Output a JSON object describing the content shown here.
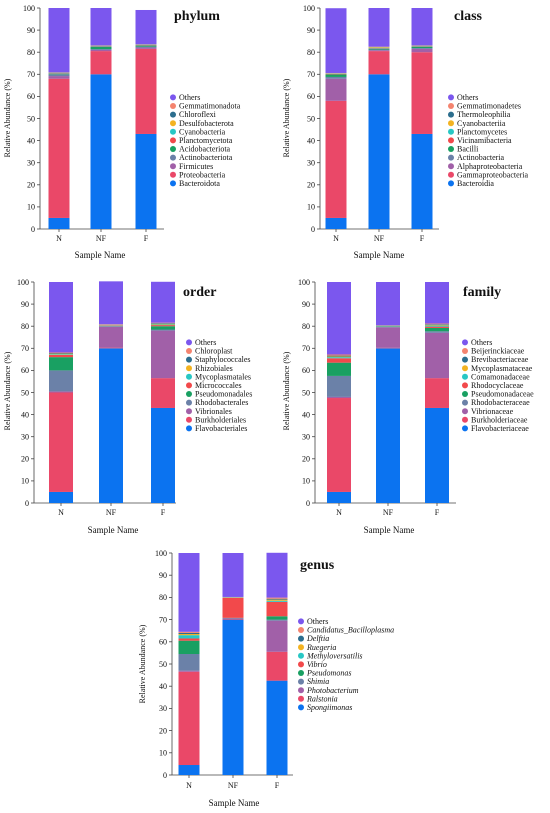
{
  "colors": {
    "Others": "#7b57ee",
    "c2": "#f4846f",
    "c3": "#2c6e8e",
    "c4": "#f3b321",
    "c5": "#28c7c4",
    "c6": "#f2494b",
    "c7": "#19a062",
    "c8": "#6b81a8",
    "c9": "#a160a8",
    "c10": "#ea4868",
    "c11": "#0b73f0"
  },
  "chart_data": [
    {
      "type": "bar",
      "title": "phylum",
      "xlabel": "Sample Name",
      "ylabel": "Relative Abundance (%)",
      "ylim": [
        0,
        100
      ],
      "yticks": [
        "0",
        "10",
        "20",
        "30",
        "40",
        "50",
        "60",
        "70",
        "80",
        "90",
        "100"
      ],
      "categories": [
        "N",
        "NF",
        "F"
      ],
      "series": [
        {
          "name": "Bacteroidota",
          "color_key": "c11",
          "values": [
            5,
            70,
            43
          ]
        },
        {
          "name": "Proteobacteria",
          "color_key": "c10",
          "values": [
            63,
            10.5,
            38.5
          ]
        },
        {
          "name": "Firmicutes",
          "color_key": "c9",
          "values": [
            1.2,
            0.5,
            0.6
          ]
        },
        {
          "name": "Actinobacteriota",
          "color_key": "c8",
          "values": [
            0.8,
            0.4,
            0.4
          ]
        },
        {
          "name": "Acidobacteriota",
          "color_key": "c7",
          "values": [
            0.3,
            1,
            0.5
          ]
        },
        {
          "name": "Planctomycetota",
          "color_key": "c6",
          "values": [
            0.2,
            0.2,
            0.2
          ]
        },
        {
          "name": "Cyanobacteria",
          "color_key": "c5",
          "values": [
            0.1,
            0.2,
            0.1
          ]
        },
        {
          "name": "Desulfobacterota",
          "color_key": "c4",
          "values": [
            0.1,
            0.1,
            0.1
          ]
        },
        {
          "name": "Chloroflexi",
          "color_key": "c3",
          "values": [
            0.1,
            0.1,
            0.1
          ]
        },
        {
          "name": "Gemmatimonadota",
          "color_key": "c2",
          "values": [
            0.1,
            0.1,
            0.1
          ]
        },
        {
          "name": "Others",
          "color_key": "Others",
          "values": [
            29.1,
            16.9,
            15.5
          ]
        }
      ],
      "legend_order": [
        "Others",
        "Gemmatimonadota",
        "Chloroflexi",
        "Desulfobacterota",
        "Cyanobacteria",
        "Planctomycetota",
        "Acidobacteriota",
        "Actinobacteriota",
        "Firmicutes",
        "Proteobacteria",
        "Bacteroidota"
      ],
      "italic_legend": false
    },
    {
      "type": "bar",
      "title": "class",
      "xlabel": "Sample Name",
      "ylabel": "Relative Abundance (%)",
      "ylim": [
        0,
        100
      ],
      "yticks": [
        "0",
        "10",
        "20",
        "30",
        "40",
        "50",
        "60",
        "70",
        "80",
        "90",
        "100"
      ],
      "categories": [
        "N",
        "NF",
        "F"
      ],
      "series": [
        {
          "name": "Bacteroidia",
          "color_key": "c11",
          "values": [
            5,
            70,
            43
          ]
        },
        {
          "name": "Gammaproteobacteria",
          "color_key": "c10",
          "values": [
            53,
            10.5,
            37
          ]
        },
        {
          "name": "Alphaproteobacteria",
          "color_key": "c9",
          "values": [
            10,
            0.4,
            1.5
          ]
        },
        {
          "name": "Actinobacteria",
          "color_key": "c8",
          "values": [
            0.8,
            0.3,
            0.4
          ]
        },
        {
          "name": "Bacilli",
          "color_key": "c7",
          "values": [
            1.2,
            0.4,
            0.6
          ]
        },
        {
          "name": "Vicinamibacteria",
          "color_key": "c6",
          "values": [
            0.2,
            0.2,
            0.2
          ]
        },
        {
          "name": "Planctomycetes",
          "color_key": "c5",
          "values": [
            0.1,
            0.2,
            0.1
          ]
        },
        {
          "name": "Cyanobacteriia",
          "color_key": "c4",
          "values": [
            0.1,
            0.3,
            0.1
          ]
        },
        {
          "name": "Thermoleophilia",
          "color_key": "c3",
          "values": [
            0.1,
            0.1,
            0.1
          ]
        },
        {
          "name": "Gemmatimonadetes",
          "color_key": "c2",
          "values": [
            0.1,
            0.1,
            0.1
          ]
        },
        {
          "name": "Others",
          "color_key": "Others",
          "values": [
            29.3,
            17.5,
            16.9
          ]
        }
      ],
      "legend_order": [
        "Others",
        "Gemmatimonadetes",
        "Thermoleophilia",
        "Cyanobacteriia",
        "Planctomycetes",
        "Vicinamibacteria",
        "Bacilli",
        "Actinobacteria",
        "Alphaproteobacteria",
        "Gammaproteobacteria",
        "Bacteroidia"
      ],
      "italic_legend": false
    },
    {
      "type": "bar",
      "title": "order",
      "xlabel": "Sample Name",
      "ylabel": "Relative Abundance (%)",
      "ylim": [
        0,
        100
      ],
      "yticks": [
        "0",
        "10",
        "20",
        "30",
        "40",
        "50",
        "60",
        "70",
        "80",
        "90",
        "100"
      ],
      "categories": [
        "N",
        "NF",
        "F"
      ],
      "series": [
        {
          "name": "Flavobacteriales",
          "color_key": "c11",
          "values": [
            5,
            70,
            43
          ]
        },
        {
          "name": "Burkholderiales",
          "color_key": "c10",
          "values": [
            45,
            0.3,
            13.5
          ]
        },
        {
          "name": "Vibrionales",
          "color_key": "c9",
          "values": [
            0.5,
            9.5,
            21.5
          ]
        },
        {
          "name": "Rhodobacterales",
          "color_key": "c8",
          "values": [
            9.5,
            0.2,
            0.5
          ]
        },
        {
          "name": "Pseudomonadales",
          "color_key": "c7",
          "values": [
            6,
            0.2,
            1.5
          ]
        },
        {
          "name": "Micrococcales",
          "color_key": "c6",
          "values": [
            1,
            0.2,
            0.5
          ]
        },
        {
          "name": "Mycoplasmatales",
          "color_key": "c5",
          "values": [
            0.3,
            0.1,
            0.3
          ]
        },
        {
          "name": "Rhizobiales",
          "color_key": "c4",
          "values": [
            0.3,
            0.1,
            0.3
          ]
        },
        {
          "name": "Staphylococcales",
          "color_key": "c3",
          "values": [
            0.3,
            0.1,
            0.3
          ]
        },
        {
          "name": "Chloroplast",
          "color_key": "c2",
          "values": [
            0.2,
            0.2,
            0.2
          ]
        },
        {
          "name": "Others",
          "color_key": "Others",
          "values": [
            31.9,
            19.4,
            18.5
          ]
        }
      ],
      "legend_order": [
        "Others",
        "Chloroplast",
        "Staphylococcales",
        "Rhizobiales",
        "Mycoplasmatales",
        "Micrococcales",
        "Pseudomonadales",
        "Rhodobacterales",
        "Vibrionales",
        "Burkholderiales",
        "Flavobacteriales"
      ],
      "italic_legend": false
    },
    {
      "type": "bar",
      "title": "family",
      "xlabel": "Sample Name",
      "ylabel": "Relative Abundance (%)",
      "ylim": [
        0,
        100
      ],
      "yticks": [
        "0",
        "10",
        "20",
        "30",
        "40",
        "50",
        "60",
        "70",
        "80",
        "90",
        "100"
      ],
      "categories": [
        "N",
        "NF",
        "F"
      ],
      "series": [
        {
          "name": "Flavobacteriaceae",
          "color_key": "c11",
          "values": [
            5,
            70,
            43
          ]
        },
        {
          "name": "Burkholderiaceae",
          "color_key": "c10",
          "values": [
            42.5,
            0.2,
            13.5
          ]
        },
        {
          "name": "Vibrionaceae",
          "color_key": "c9",
          "values": [
            0.5,
            9.3,
            20.5
          ]
        },
        {
          "name": "Rhodobacteraceae",
          "color_key": "c8",
          "values": [
            9.5,
            0.2,
            0.7
          ]
        },
        {
          "name": "Pseudomonadaceae",
          "color_key": "c7",
          "values": [
            6,
            0.2,
            1.5
          ]
        },
        {
          "name": "Rhodocyclaceae",
          "color_key": "c6",
          "values": [
            2,
            0.1,
            0.6
          ]
        },
        {
          "name": "Comamonadaceae",
          "color_key": "c5",
          "values": [
            0.5,
            0.1,
            0.5
          ]
        },
        {
          "name": "Mycoplasmataceae",
          "color_key": "c4",
          "values": [
            0.3,
            0.1,
            0.3
          ]
        },
        {
          "name": "Brevibacteriaceae",
          "color_key": "c3",
          "values": [
            0.4,
            0.1,
            0.3
          ]
        },
        {
          "name": "Beijerinckiaceae",
          "color_key": "c2",
          "values": [
            0.5,
            0.1,
            0.3
          ]
        },
        {
          "name": "Others",
          "color_key": "Others",
          "values": [
            32.8,
            19.6,
            18.8
          ]
        }
      ],
      "legend_order": [
        "Others",
        "Beijerinckiaceae",
        "Brevibacteriaceae",
        "Mycoplasmataceae",
        "Comamonadaceae",
        "Rhodocyclaceae",
        "Pseudomonadaceae",
        "Rhodobacteraceae",
        "Vibrionaceae",
        "Burkholderiaceae",
        "Flavobacteriaceae"
      ],
      "italic_legend": false
    },
    {
      "type": "bar",
      "title": "genus",
      "xlabel": "Sample Name",
      "ylabel": "Relative Abundance (%)",
      "ylim": [
        0,
        100
      ],
      "yticks": [
        "0",
        "10",
        "20",
        "30",
        "40",
        "50",
        "60",
        "70",
        "80",
        "90",
        "100"
      ],
      "categories": [
        "N",
        "NF",
        "F"
      ],
      "series": [
        {
          "name": "Spongiimonas",
          "color_key": "c11",
          "values": [
            4.5,
            70,
            42.5
          ]
        },
        {
          "name": "Ralstonia",
          "color_key": "c10",
          "values": [
            42,
            0.3,
            13
          ]
        },
        {
          "name": "Photobacterium",
          "color_key": "c9",
          "values": [
            0.5,
            0.2,
            14
          ]
        },
        {
          "name": "Shimia",
          "color_key": "c8",
          "values": [
            7.5,
            0.2,
            0.5
          ]
        },
        {
          "name": "Pseudomonas",
          "color_key": "c7",
          "values": [
            6,
            0.1,
            1.5
          ]
        },
        {
          "name": "Vibrio",
          "color_key": "c6",
          "values": [
            1,
            9,
            6.5
          ]
        },
        {
          "name": "Methyloversatilis",
          "color_key": "c5",
          "values": [
            1.5,
            0.1,
            0.5
          ]
        },
        {
          "name": "Ruegeria",
          "color_key": "c4",
          "values": [
            0.5,
            0.1,
            0.5
          ]
        },
        {
          "name": "Delftia",
          "color_key": "c3",
          "values": [
            0.5,
            0.1,
            0.4
          ]
        },
        {
          "name": "Candidatus_Bacilloplasma",
          "color_key": "c2",
          "values": [
            0.5,
            0.1,
            0.5
          ]
        },
        {
          "name": "Others",
          "color_key": "Others",
          "values": [
            35.5,
            19.8,
            20.2
          ]
        }
      ],
      "legend_order": [
        "Others",
        "Candidatus_Bacilloplasma",
        "Delftia",
        "Ruegeria",
        "Methyloversatilis",
        "Vibrio",
        "Pseudomonas",
        "Shimia",
        "Photobacterium",
        "Ralstonia",
        "Spongiimonas"
      ],
      "italic_legend": true
    }
  ]
}
